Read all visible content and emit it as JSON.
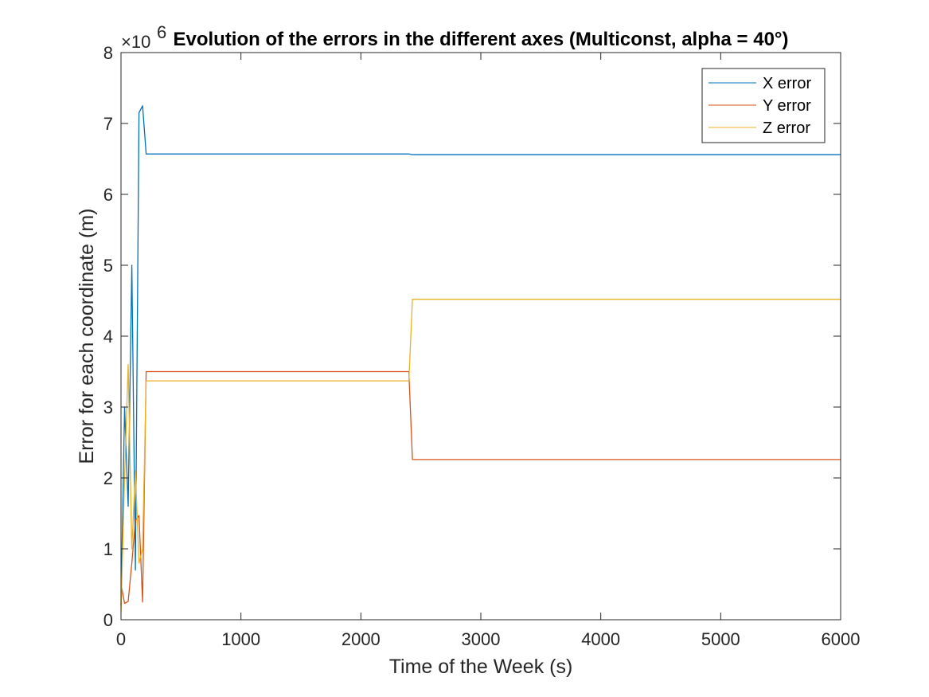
{
  "chart_data": {
    "type": "line",
    "title": "Evolution of the errors in the different axes (Multiconst, alpha = 40°)",
    "xlabel": "Time of the Week (s)",
    "ylabel": "Error for each coordinate (m)",
    "y_exponent_label": "×10",
    "y_exponent_power": "6",
    "xlim": [
      0,
      6000
    ],
    "ylim": [
      0,
      8
    ],
    "xticks": [
      0,
      1000,
      2000,
      3000,
      4000,
      5000,
      6000
    ],
    "yticks": [
      0,
      1,
      2,
      3,
      4,
      5,
      6,
      7,
      8
    ],
    "grid": false,
    "legend_position": "top-right",
    "series": [
      {
        "name": "X error",
        "color": "#0072BD",
        "points": [
          [
            0,
            0.2
          ],
          [
            30,
            3.0
          ],
          [
            60,
            1.6
          ],
          [
            90,
            5.0
          ],
          [
            120,
            0.7
          ],
          [
            150,
            7.15
          ],
          [
            180,
            7.25
          ],
          [
            210,
            6.57
          ],
          [
            2400,
            6.57
          ],
          [
            2430,
            6.56
          ],
          [
            6000,
            6.56
          ]
        ]
      },
      {
        "name": "Y error",
        "color": "#D95319",
        "points": [
          [
            0,
            0.5
          ],
          [
            30,
            0.23
          ],
          [
            60,
            0.26
          ],
          [
            90,
            0.8
          ],
          [
            120,
            1.4
          ],
          [
            150,
            1.47
          ],
          [
            180,
            0.25
          ],
          [
            210,
            3.5
          ],
          [
            2400,
            3.5
          ],
          [
            2430,
            2.26
          ],
          [
            6000,
            2.26
          ]
        ]
      },
      {
        "name": "Z error",
        "color": "#EDB120",
        "points": [
          [
            0,
            0.1
          ],
          [
            30,
            2.0
          ],
          [
            60,
            3.6
          ],
          [
            90,
            1.0
          ],
          [
            120,
            2.1
          ],
          [
            150,
            0.8
          ],
          [
            180,
            1.0
          ],
          [
            210,
            3.37
          ],
          [
            2400,
            3.37
          ],
          [
            2430,
            4.52
          ],
          [
            6000,
            4.52
          ]
        ]
      }
    ]
  }
}
